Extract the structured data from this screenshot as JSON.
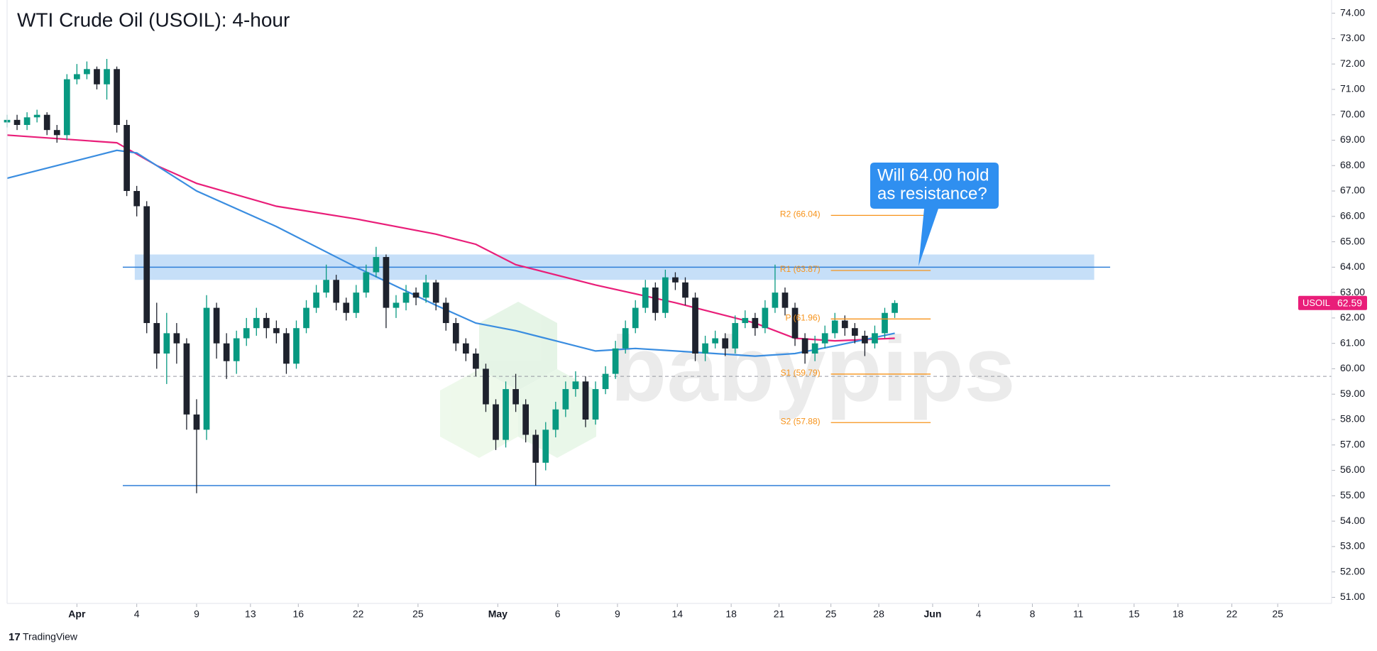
{
  "chart_data": {
    "type": "candlestick",
    "title": "WTI Crude Oil (USOIL): 4-hour",
    "symbol": "USOIL",
    "watermark": "babypips",
    "footer": "TradingView",
    "annotation": [
      "Will 64.00 hold",
      "as resistance?"
    ],
    "up_color": "#089981",
    "down_color": "#1e222d",
    "x": [
      -3.5,
      -3.0,
      -2.5,
      -2.0,
      -1.5,
      -1.0,
      -0.5,
      0.0,
      0.5,
      1.0,
      1.5,
      2.0,
      2.5,
      3.0,
      3.5,
      4.0,
      4.5,
      5.0,
      5.5,
      6.0,
      6.5,
      7.0,
      7.5,
      8.0,
      8.5,
      9.0,
      9.5,
      10.0,
      10.5,
      11.0,
      11.5,
      12.0,
      12.5,
      13.0,
      13.5,
      14.0,
      14.5,
      15.0,
      15.5,
      16.0,
      16.5,
      17.0,
      17.5,
      18.0,
      18.5,
      19.0,
      19.5,
      20.0,
      20.5,
      21.0,
      21.5,
      22.0,
      22.5,
      23.0,
      23.5,
      24.0,
      24.5,
      25.0,
      25.5,
      26.0,
      26.5,
      27.0,
      27.5,
      28.0,
      28.5,
      29.0,
      29.5,
      30.0,
      30.5,
      31.0,
      31.5,
      32.0,
      32.5,
      33.0,
      33.5,
      34.0,
      34.5,
      35.0,
      35.5,
      36.0,
      36.5,
      37.0,
      37.5,
      38.0,
      38.5,
      39.0,
      39.5,
      40.0,
      40.5,
      41.0
    ],
    "open": [
      69.7,
      69.8,
      69.6,
      69.9,
      70.0,
      69.4,
      69.2,
      71.4,
      71.6,
      71.8,
      71.2,
      71.8,
      69.6,
      67.0,
      66.4,
      61.8,
      60.6,
      61.4,
      61.0,
      58.2,
      57.6,
      62.4,
      61.0,
      60.3,
      61.2,
      61.6,
      62.0,
      61.6,
      61.4,
      60.2,
      61.6,
      62.4,
      63.0,
      63.5,
      62.6,
      62.2,
      63.0,
      63.8,
      64.4,
      62.4,
      62.6,
      63.0,
      62.8,
      63.4,
      62.6,
      61.8,
      61.0,
      60.6,
      60.0,
      58.6,
      57.2,
      59.2,
      58.6,
      57.4,
      56.3,
      57.6,
      58.4,
      59.2,
      59.5,
      58.0,
      59.2,
      59.8,
      60.8,
      61.6,
      62.4,
      63.2,
      62.2,
      63.6,
      63.4,
      62.8,
      60.6,
      61.0,
      61.2,
      60.8,
      61.8,
      62.0,
      61.6,
      62.4,
      63.0,
      62.4,
      61.2,
      60.6,
      61.0,
      61.4,
      61.9,
      61.6,
      61.3,
      61.0,
      61.4,
      62.2
    ],
    "high": [
      70.0,
      70.0,
      70.1,
      70.2,
      70.1,
      69.6,
      71.6,
      72.0,
      72.1,
      71.9,
      72.2,
      71.9,
      69.8,
      67.2,
      66.6,
      62.6,
      62.2,
      61.8,
      61.2,
      58.8,
      62.9,
      62.6,
      61.4,
      61.5,
      62.0,
      62.4,
      62.2,
      61.9,
      61.6,
      61.9,
      62.7,
      63.3,
      64.1,
      63.7,
      62.8,
      63.3,
      64.1,
      64.8,
      64.5,
      62.9,
      63.3,
      63.2,
      63.7,
      63.5,
      62.8,
      62.0,
      61.2,
      60.8,
      60.2,
      58.8,
      59.5,
      59.8,
      58.8,
      57.6,
      57.9,
      58.7,
      59.5,
      59.9,
      59.7,
      59.5,
      60.1,
      61.1,
      61.9,
      62.7,
      63.5,
      63.4,
      63.9,
      63.8,
      63.6,
      63.0,
      61.3,
      61.5,
      61.4,
      62.1,
      62.3,
      62.2,
      62.7,
      64.1,
      63.2,
      62.6,
      61.4,
      61.3,
      61.7,
      62.2,
      62.1,
      61.8,
      61.5,
      61.7,
      62.4,
      62.7
    ],
    "low": [
      69.5,
      69.4,
      69.4,
      69.7,
      69.2,
      68.9,
      69.0,
      71.2,
      71.4,
      71.0,
      70.6,
      69.3,
      66.8,
      66.0,
      61.4,
      60.0,
      59.4,
      60.2,
      57.6,
      55.1,
      57.2,
      60.4,
      59.6,
      59.8,
      60.9,
      61.3,
      61.2,
      61.0,
      59.8,
      60.0,
      61.4,
      62.2,
      62.8,
      62.3,
      61.9,
      62.0,
      62.8,
      63.6,
      61.6,
      62.0,
      62.3,
      62.5,
      62.6,
      62.3,
      61.5,
      60.7,
      60.3,
      59.7,
      58.3,
      56.8,
      56.9,
      58.3,
      57.1,
      55.4,
      56.0,
      57.3,
      58.1,
      58.9,
      57.7,
      57.8,
      59.0,
      59.6,
      60.6,
      61.4,
      62.2,
      61.9,
      62.0,
      63.1,
      62.5,
      60.3,
      60.3,
      60.8,
      60.5,
      60.6,
      61.6,
      61.3,
      61.4,
      62.2,
      62.1,
      60.9,
      60.2,
      60.3,
      60.8,
      61.2,
      61.3,
      61.0,
      60.5,
      60.8,
      61.2,
      62.0
    ],
    "close": [
      69.8,
      69.6,
      69.9,
      70.0,
      69.4,
      69.2,
      71.4,
      71.6,
      71.8,
      71.2,
      71.8,
      69.6,
      67.0,
      66.4,
      61.8,
      60.6,
      61.4,
      61.0,
      58.2,
      57.6,
      62.4,
      61.0,
      60.3,
      61.2,
      61.6,
      62.0,
      61.6,
      61.4,
      60.2,
      61.6,
      62.4,
      63.0,
      63.5,
      62.6,
      62.2,
      63.0,
      63.8,
      64.4,
      62.4,
      62.6,
      63.0,
      62.8,
      63.4,
      62.6,
      61.8,
      61.0,
      60.6,
      60.0,
      58.6,
      57.2,
      59.2,
      58.6,
      57.4,
      56.3,
      57.6,
      58.4,
      59.2,
      59.5,
      58.0,
      59.2,
      59.8,
      60.8,
      61.6,
      62.4,
      63.2,
      62.2,
      63.6,
      63.4,
      62.8,
      60.6,
      61.0,
      61.2,
      60.8,
      61.8,
      62.0,
      61.6,
      62.4,
      63.0,
      62.4,
      61.2,
      60.6,
      61.0,
      61.4,
      61.9,
      61.6,
      61.3,
      61.0,
      61.4,
      62.2,
      62.59
    ],
    "moving_averages": [
      {
        "color": "#e91e79",
        "x": [
          -3.5,
          2,
          4,
          6,
          10,
          14,
          18,
          20,
          22,
          26,
          30,
          34,
          36,
          38,
          41
        ],
        "values": [
          69.2,
          68.9,
          68.0,
          67.3,
          66.4,
          65.9,
          65.3,
          64.9,
          64.1,
          63.3,
          62.6,
          61.8,
          61.2,
          61.1,
          61.2
        ]
      },
      {
        "color": "#3a8de0",
        "x": [
          -3.5,
          0,
          2,
          3,
          6,
          10,
          14,
          18,
          20,
          22,
          24,
          26,
          28,
          30,
          34,
          36,
          38,
          41
        ],
        "values": [
          67.5,
          68.2,
          68.6,
          68.5,
          67.0,
          65.6,
          64.0,
          62.5,
          61.8,
          61.5,
          61.1,
          60.7,
          60.8,
          60.7,
          60.5,
          60.6,
          60.9,
          61.4
        ]
      }
    ],
    "zone": {
      "values": [
        63.5,
        64.5
      ],
      "x": [
        2.9,
        51.0
      ],
      "color": "#bcd9f7"
    },
    "lines": [
      {
        "value": 64.0,
        "x": [
          2.3,
          51.8
        ],
        "color": "#2f7fd8",
        "dashed": false
      },
      {
        "value": 55.4,
        "x": [
          2.3,
          51.8
        ],
        "color": "#2f7fd8",
        "dashed": false
      },
      {
        "value": 59.7,
        "color": "#9598a1",
        "dashed": true
      }
    ],
    "pivot_x": [
      37.8,
      42.8
    ],
    "pivot_color": "#f7931a",
    "pivots": [
      {
        "label": "R2 (66.04)",
        "value": 66.04
      },
      {
        "label": "R1 (63.87)",
        "value": 63.87
      },
      {
        "label": "P (61.96)",
        "value": 61.96
      },
      {
        "label": "S1 (59.79)",
        "value": 59.79
      },
      {
        "label": "S2 (57.88)",
        "value": 57.88
      }
    ],
    "tag_color": "#e91e79",
    "xlim": [
      -3.5,
      62.9
    ],
    "ylim": [
      50.76,
      74.52
    ],
    "xticks": [
      {
        "value": 0,
        "label": "Apr"
      },
      {
        "value": 3.0,
        "label": "4"
      },
      {
        "value": 6.0,
        "label": "9"
      },
      {
        "value": 8.7,
        "label": "13"
      },
      {
        "value": 11.1,
        "label": "16"
      },
      {
        "value": 14.1,
        "label": "22"
      },
      {
        "value": 17.1,
        "label": "25"
      },
      {
        "value": 21.1,
        "label": "May"
      },
      {
        "value": 24.1,
        "label": "6"
      },
      {
        "value": 27.1,
        "label": "9"
      },
      {
        "value": 30.1,
        "label": "14"
      },
      {
        "value": 32.8,
        "label": "18"
      },
      {
        "value": 35.2,
        "label": "21"
      },
      {
        "value": 37.8,
        "label": "25"
      },
      {
        "value": 40.2,
        "label": "28"
      },
      {
        "value": 42.9,
        "label": "Jun"
      },
      {
        "value": 45.2,
        "label": "4"
      },
      {
        "value": 47.9,
        "label": "8"
      },
      {
        "value": 50.2,
        "label": "11"
      },
      {
        "value": 53.0,
        "label": "15"
      },
      {
        "value": 55.2,
        "label": "18"
      },
      {
        "value": 57.9,
        "label": "22"
      },
      {
        "value": 60.2,
        "label": "25"
      }
    ],
    "yticks": [
      {
        "value": 51,
        "label": "51.00"
      },
      {
        "value": 52,
        "label": "52.00"
      },
      {
        "value": 53,
        "label": "53.00"
      },
      {
        "value": 54,
        "label": "54.00"
      },
      {
        "value": 55,
        "label": "55.00"
      },
      {
        "value": 56,
        "label": "56.00"
      },
      {
        "value": 57,
        "label": "57.00"
      },
      {
        "value": 58,
        "label": "58.00"
      },
      {
        "value": 59,
        "label": "59.00"
      },
      {
        "value": 60,
        "label": "60.00"
      },
      {
        "value": 61,
        "label": "61.00"
      },
      {
        "value": 62,
        "label": "62.00"
      },
      {
        "value": 63,
        "label": "63.00"
      },
      {
        "value": 64,
        "label": "64.00"
      },
      {
        "value": 65,
        "label": "65.00"
      },
      {
        "value": 66,
        "label": "66.00"
      },
      {
        "value": 67,
        "label": "67.00"
      },
      {
        "value": 68,
        "label": "68.00"
      },
      {
        "value": 69,
        "label": "69.00"
      },
      {
        "value": 70,
        "label": "70.00"
      },
      {
        "value": 71,
        "label": "71.00"
      },
      {
        "value": 72,
        "label": "72.00"
      },
      {
        "value": 73,
        "label": "73.00"
      },
      {
        "value": 74,
        "label": "74.00"
      }
    ]
  }
}
